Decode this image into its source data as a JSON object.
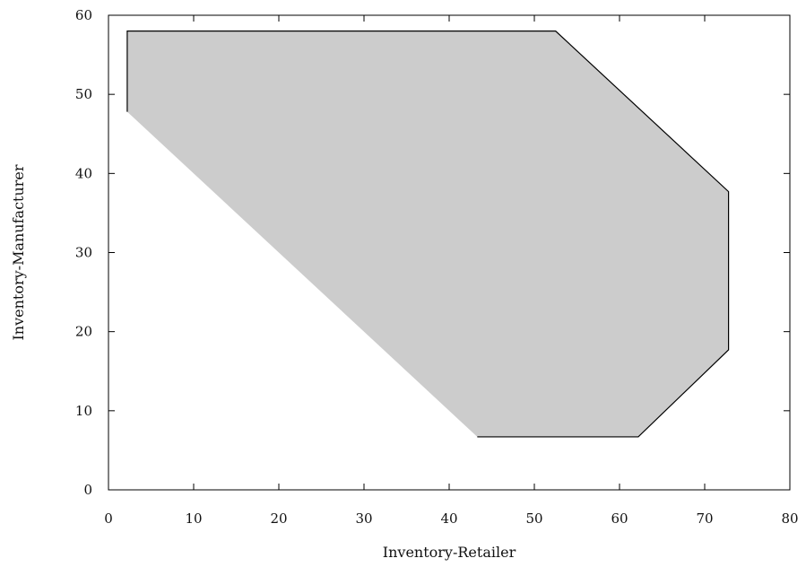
{
  "chart_data": {
    "type": "area",
    "xlabel": "Inventory-Retailer",
    "ylabel": "Inventory-Manufacturer",
    "xlim": [
      0,
      80
    ],
    "ylim": [
      0,
      60
    ],
    "x_ticks": [
      "0",
      "10",
      "20",
      "30",
      "40",
      "50",
      "60",
      "70",
      "80"
    ],
    "y_ticks": [
      "0",
      "10",
      "20",
      "30",
      "40",
      "50",
      "60"
    ],
    "grid": false,
    "legend": "none",
    "fill_color": "#cccccc",
    "edge_color": "#000000",
    "region": {
      "x": [
        2.2,
        2.2,
        52.5,
        72.8,
        72.8,
        62.2,
        43.3,
        2.2
      ],
      "y": [
        47.8,
        58.0,
        58.0,
        37.7,
        17.7,
        6.7,
        6.7,
        47.8
      ]
    },
    "outline": {
      "x": [
        2.2,
        2.2,
        52.5,
        72.8,
        72.8,
        62.2,
        43.3
      ],
      "y": [
        47.8,
        58.0,
        58.0,
        37.7,
        17.7,
        6.7,
        6.7
      ]
    }
  }
}
